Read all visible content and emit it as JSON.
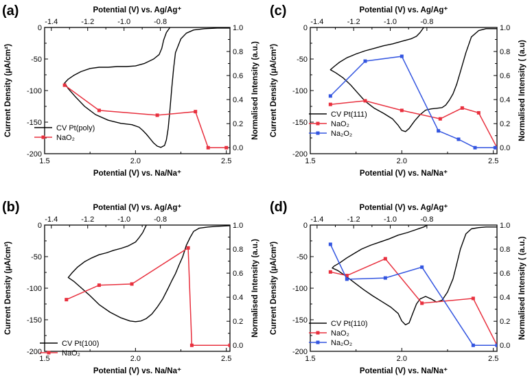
{
  "colors": {
    "cv": "#000000",
    "nao2": "#e8303e",
    "na2o2": "#3355e0"
  },
  "chart_data": [
    {
      "panel": "(a)",
      "type": "line",
      "xlabel": "Potential (V) vs. Na/Na⁺",
      "x2label": "Potential (V) vs. Ag/Ag⁺",
      "ylabel": "Current Density (μA/cm²)",
      "y2label": "Normalised Intensity (a.u.)",
      "xlim": [
        1.5,
        2.52
      ],
      "ylim": [
        -200,
        0
      ],
      "y2lim": [
        -0.05,
        1.0
      ],
      "xticks": [
        "1.5",
        "2.0",
        "2.5"
      ],
      "x2ticks": [
        "-1.4",
        "-1.2",
        "-1.0",
        "-0.8"
      ],
      "yticks": [
        "0",
        "-50",
        "-100",
        "-150",
        "-200"
      ],
      "y2ticks": [
        "0.0",
        "0.2",
        "0.4",
        "0.6",
        "0.8",
        "1.0"
      ],
      "cv": {
        "name": "CV Pt(poly)",
        "x": [
          2.19,
          2.17,
          2.155,
          2.145,
          2.13,
          2.1,
          2.05,
          2.0,
          1.95,
          1.9,
          1.85,
          1.8,
          1.75,
          1.7,
          1.66,
          1.63,
          1.61,
          1.63,
          1.67,
          1.72,
          1.78,
          1.85,
          1.92,
          1.98,
          2.02,
          2.04,
          2.06,
          2.08,
          2.1,
          2.12,
          2.14,
          2.16,
          2.17,
          2.18,
          2.19,
          2.2,
          2.21,
          2.22,
          2.25,
          2.28,
          2.32,
          2.38,
          2.45,
          2.52
        ],
        "y": [
          0,
          -8,
          -20,
          -33,
          -43,
          -50,
          -57,
          -61,
          -62,
          -62,
          -63,
          -63,
          -65,
          -70,
          -76,
          -82,
          -88,
          -97,
          -110,
          -125,
          -138,
          -147,
          -152,
          -154,
          -158,
          -163,
          -169,
          -176,
          -183,
          -188,
          -190,
          -187,
          -178,
          -160,
          -130,
          -95,
          -65,
          -40,
          -18,
          -9,
          -4,
          -2,
          -1,
          -1
        ]
      },
      "series": [
        {
          "name": "NaO₂",
          "x": [
            1.61,
            1.8,
            2.12,
            2.33,
            2.4,
            2.5
          ],
          "y": [
            0.52,
            0.31,
            0.27,
            0.3,
            0.0,
            0.0
          ]
        }
      ]
    },
    {
      "panel": "(b)",
      "type": "line",
      "xlabel": "Potential (V) vs. Na/Na⁺",
      "x2label": "Potential (V) vs. Ag/Ag⁺",
      "ylabel": "Current Density (μA/cm²)",
      "y2label": "Normalised Intensity (a.u.)",
      "xlim": [
        1.5,
        2.52
      ],
      "ylim": [
        -200,
        0
      ],
      "y2lim": [
        -0.05,
        1.0
      ],
      "xticks": [
        "1.5",
        "2.0",
        "2.5"
      ],
      "x2ticks": [
        "-1.4",
        "-1.2",
        "-1.0",
        "-0.8"
      ],
      "yticks": [
        "0",
        "-50",
        "-100",
        "-150",
        "-200"
      ],
      "y2ticks": [
        "0.0",
        "0.2",
        "0.4",
        "0.6",
        "0.8",
        "1.0"
      ],
      "cv": {
        "name": "CV Pt(100)",
        "x": [
          2.06,
          2.04,
          2.02,
          2.0,
          1.96,
          1.92,
          1.88,
          1.84,
          1.8,
          1.76,
          1.72,
          1.68,
          1.65,
          1.63,
          1.66,
          1.7,
          1.75,
          1.8,
          1.86,
          1.92,
          1.97,
          2.0,
          2.03,
          2.06,
          2.09,
          2.12,
          2.15,
          2.18,
          2.2,
          2.22,
          2.24,
          2.26,
          2.28,
          2.3,
          2.32,
          2.35,
          2.4,
          2.45,
          2.52
        ],
        "y": [
          0,
          -12,
          -20,
          -27,
          -33,
          -37,
          -40,
          -44,
          -47,
          -52,
          -58,
          -67,
          -76,
          -83,
          -89,
          -99,
          -112,
          -126,
          -138,
          -147,
          -152,
          -153,
          -152,
          -148,
          -141,
          -130,
          -117,
          -100,
          -88,
          -77,
          -63,
          -50,
          -32,
          -20,
          -10,
          -5,
          -3,
          -2,
          -1
        ]
      },
      "series": [
        {
          "name": "NaO₂",
          "x": [
            1.62,
            1.8,
            1.98,
            2.29,
            2.31,
            2.52
          ],
          "y": [
            0.38,
            0.5,
            0.51,
            0.81,
            0.0,
            0.0
          ]
        }
      ]
    },
    {
      "panel": "(c)",
      "type": "line",
      "xlabel": "Potential (V) vs. Na/Na⁺",
      "x2label": "Potential (V) vs. Ag/Ag⁺",
      "ylabel": "Current Density (μA/cm²)",
      "y2label": "Normalised Intensity ( (a.u)",
      "xlim": [
        1.5,
        2.52
      ],
      "ylim": [
        -200,
        0
      ],
      "y2lim": [
        -0.05,
        1.0
      ],
      "xticks": [
        "1.5",
        "2.0",
        "2.5"
      ],
      "x2ticks": [
        "-1.4",
        "-1.2",
        "-1.0",
        "-0.8"
      ],
      "yticks": [
        "0",
        "-50",
        "-100",
        "-150",
        "-200"
      ],
      "y2ticks": [
        "0.0",
        "0.2",
        "0.4",
        "0.6",
        "0.8",
        "1.0"
      ],
      "cv": {
        "name": "CV Pt(111)",
        "x": [
          2.12,
          2.1,
          2.08,
          2.05,
          2.0,
          1.95,
          1.9,
          1.85,
          1.8,
          1.75,
          1.7,
          1.66,
          1.63,
          1.61,
          1.64,
          1.68,
          1.72,
          1.76,
          1.8,
          1.85,
          1.9,
          1.95,
          1.98,
          2.0,
          2.02,
          2.04,
          2.07,
          2.1,
          2.13,
          2.16,
          2.19,
          2.22,
          2.24,
          2.26,
          2.28,
          2.3,
          2.32,
          2.35,
          2.38,
          2.42,
          2.46,
          2.52
        ],
        "y": [
          0,
          -8,
          -14,
          -18,
          -22,
          -26,
          -29,
          -33,
          -37,
          -42,
          -48,
          -55,
          -62,
          -67,
          -72,
          -80,
          -91,
          -104,
          -117,
          -128,
          -136,
          -145,
          -155,
          -163,
          -165,
          -160,
          -148,
          -138,
          -131,
          -129,
          -128,
          -127,
          -123,
          -115,
          -105,
          -90,
          -70,
          -40,
          -15,
          -5,
          -2,
          -2
        ]
      },
      "series": [
        {
          "name": "NaO₂",
          "x": [
            1.61,
            1.8,
            2.0,
            2.21,
            2.33,
            2.42,
            2.52
          ],
          "y": [
            0.36,
            0.39,
            0.31,
            0.24,
            0.33,
            0.29,
            0.0
          ]
        },
        {
          "name": "Na₂O₂",
          "x": [
            1.61,
            1.8,
            2.0,
            2.2,
            2.31,
            2.4,
            2.51
          ],
          "y": [
            0.43,
            0.72,
            0.76,
            0.14,
            0.07,
            0.0,
            0.0
          ]
        }
      ]
    },
    {
      "panel": "(d)",
      "type": "line",
      "xlabel": "Potential (V) vs. Na/Na⁺",
      "x2label": "Potential (V) vs. Ag/Ag⁺",
      "ylabel": "Current Density (μA/cm²)",
      "y2label": "Normalised Intensity ( (a.u.)",
      "xlim": [
        1.5,
        2.52
      ],
      "ylim": [
        -200,
        0
      ],
      "y2lim": [
        -0.05,
        1.0
      ],
      "xticks": [
        "1.5",
        "2.0",
        "2.5"
      ],
      "x2ticks": [
        "-1.4",
        "-1.2",
        "-1.0",
        "-0.8"
      ],
      "yticks": [
        "0",
        "-50",
        "-100",
        "-150",
        "-200"
      ],
      "y2ticks": [
        "0.0",
        "0.2",
        "0.4",
        "0.6",
        "0.8",
        "1.0"
      ],
      "cv": {
        "name": "CV Pt(110)",
        "x": [
          2.14,
          2.12,
          2.1,
          2.07,
          2.03,
          1.98,
          1.93,
          1.88,
          1.83,
          1.78,
          1.74,
          1.7,
          1.66,
          1.63,
          1.62,
          1.65,
          1.69,
          1.74,
          1.79,
          1.84,
          1.89,
          1.94,
          1.98,
          2.0,
          2.02,
          2.04,
          2.06,
          2.08,
          2.1,
          2.13,
          2.16,
          2.19,
          2.22,
          2.25,
          2.28,
          2.3,
          2.32,
          2.35,
          2.38,
          2.42,
          2.46,
          2.52
        ],
        "y": [
          0,
          -3,
          -5,
          -8,
          -12,
          -16,
          -22,
          -27,
          -32,
          -38,
          -45,
          -52,
          -60,
          -65,
          -68,
          -72,
          -80,
          -91,
          -102,
          -112,
          -121,
          -130,
          -140,
          -152,
          -158,
          -155,
          -140,
          -125,
          -117,
          -113,
          -117,
          -122,
          -119,
          -106,
          -85,
          -62,
          -38,
          -14,
          -6,
          -4,
          -3,
          -3
        ]
      },
      "series": [
        {
          "name": "NaO₂",
          "x": [
            1.61,
            1.7,
            1.91,
            2.11,
            2.39,
            2.52
          ],
          "y": [
            0.61,
            0.58,
            0.72,
            0.35,
            0.39,
            0.0
          ]
        },
        {
          "name": "Na₂O₂",
          "x": [
            1.61,
            1.7,
            1.91,
            2.11,
            2.39,
            2.52
          ],
          "y": [
            0.84,
            0.55,
            0.56,
            0.65,
            0.0,
            0.0
          ]
        }
      ]
    }
  ]
}
